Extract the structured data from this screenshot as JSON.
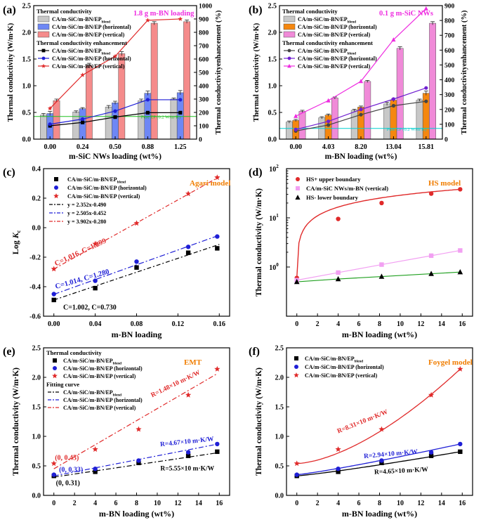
{
  "colors": {
    "gray_bar": "#c8c8c8",
    "blue_bar": "#6e87f5",
    "pink_bar": "#f58b8b",
    "orange_bar": "#f5870f",
    "magenta_bar": "#f08ad8",
    "black": "#000000",
    "blue": "#1f1fd6",
    "red": "#e02a2a",
    "magenta": "#ee2de0",
    "pinksq": "#f2a0f2",
    "orange_text": "#f07d00",
    "cyan": "#00d0d0",
    "green": "#20c020"
  },
  "chart_data": [
    {
      "panel": "(a)",
      "type": "bar",
      "xlabel": "m-SiC NWs loading (wt%)",
      "ylabel": "Thermal conductivity (W/m·K)",
      "ylabel2": "Thermal conductivityenhancement (%)",
      "categories": [
        "0.00",
        "0.24",
        "0.50",
        "0.88",
        "1.25"
      ],
      "ylim": [
        0,
        2.5
      ],
      "yticks": [
        "0.0",
        "0.5",
        "1.0",
        "1.5",
        "2.0",
        "2.5"
      ],
      "y2lim": [
        0,
        1000
      ],
      "y2ticks": [
        "0",
        "100",
        "200",
        "300",
        "400",
        "500",
        "600",
        "700",
        "800",
        "900",
        "1000"
      ],
      "annotation": "1.8 g m-BN loading",
      "legend": {
        "head1": "Thermal conductivity",
        "head2": "Thermal conductivity enhancement",
        "entries": [
          "CA/m-SiC/m-BN/EP",
          "CA/m-SiC/m-BN/EP (horizontal)",
          "CA/m-SiC/m-BN/EP (vertical)"
        ],
        "sub": "blend",
        "line_entries": [
          "CA/m-SiC/m-BN/EP",
          "CA/m-SiC/m-BN/EP (horizontal)",
          "CA/m-SiC/m-BN/EP (vertical)"
        ]
      },
      "series": [
        {
          "values": [
            0.45,
            0.51,
            0.6,
            0.72,
            0.75
          ],
          "errors": [
            0.03,
            0.02,
            0.03,
            0.03,
            0.02
          ]
        },
        {
          "values": [
            0.48,
            0.57,
            0.68,
            0.86,
            0.87
          ],
          "errors": [
            0.04,
            0.02,
            0.03,
            0.04,
            0.04
          ]
        },
        {
          "values": [
            0.72,
            1.38,
            1.6,
            2.17,
            2.2
          ],
          "errors": [
            0.03,
            0.04,
            0.04,
            0.03,
            0.03
          ]
        }
      ],
      "enhancement": [
        {
          "values": [
            100,
            125,
            165,
            198,
            198
          ]
        },
        {
          "values": [
            112,
            150,
            210,
            295,
            295
          ]
        },
        {
          "values": [
            230,
            480,
            620,
            890,
            900
          ]
        }
      ],
      "reference_line": {
        "y2": 170,
        "label": "Pure EP (0.2 W/m·K)"
      }
    },
    {
      "panel": "(b)",
      "type": "bar",
      "xlabel": "m-BN loading (wt%)",
      "ylabel": "Thermal conductivity (W/m·K)",
      "ylabel2": "Thermal conductivityenhancement (%)",
      "categories": [
        "0.00",
        "4.03",
        "8.20",
        "13.04",
        "15.81"
      ],
      "ylim": [
        0,
        2.5
      ],
      "yticks": [
        "0.0",
        "0.5",
        "1.0",
        "1.5",
        "2.0",
        "2.5"
      ],
      "y2lim": [
        0,
        900
      ],
      "y2ticks": [
        "0",
        "100",
        "200",
        "300",
        "400",
        "500",
        "600",
        "700",
        "800",
        "900"
      ],
      "annotation": "0.1 g m-SiC NWs",
      "legend": {
        "head1": "Thermal conductivity",
        "head2": "Thermal conductivity enhancement",
        "entries": [
          "CA/m-SiC/m-BN/EP",
          "CA/m-SiC/m-BN/EP (horizontal)",
          "CA/m-SiC/m-BN/EP (vertical)"
        ],
        "sub": "blend",
        "line_entries": [
          "CA/m-SiC/m-BN/EP",
          "CA/m-SiC/m-BN/EP (horizontal)",
          "CA/m-SiC/m-BN/EP (vertical)"
        ]
      },
      "series": [
        {
          "values": [
            0.32,
            0.4,
            0.54,
            0.66,
            0.73
          ],
          "errors": [
            0.02,
            0.02,
            0.02,
            0.03,
            0.02
          ]
        },
        {
          "values": [
            0.35,
            0.45,
            0.6,
            0.73,
            0.86
          ],
          "errors": [
            0.02,
            0.02,
            0.02,
            0.03,
            0.04
          ]
        },
        {
          "values": [
            0.52,
            0.77,
            1.08,
            1.7,
            2.17
          ],
          "errors": [
            0.02,
            0.02,
            0.02,
            0.03,
            0.03
          ]
        }
      ],
      "enhancement": [
        {
          "values": [
            55,
            95,
            165,
            225,
            255
          ]
        },
        {
          "values": [
            65,
            120,
            200,
            270,
            345
          ]
        },
        {
          "values": [
            155,
            260,
            390,
            670,
            880
          ]
        }
      ],
      "reference_line": {
        "y": 0.2,
        "label": "Pure EP (0.2 W/m·K)"
      }
    },
    {
      "panel": "(c)",
      "type": "scatter",
      "title": "Agari model",
      "xlabel": "m-BN loading",
      "ylabel": "Log K",
      "xlim": [
        -0.01,
        0.17
      ],
      "ylim": [
        -0.6,
        0.4
      ],
      "xticks": [
        "0.00",
        "0.04",
        "0.08",
        "0.12",
        "0.16"
      ],
      "yticks": [
        "-0.6",
        "-0.4",
        "-0.2",
        "0.0",
        "0.2",
        "0.4"
      ],
      "x": [
        0.0,
        0.04,
        0.08,
        0.13,
        0.158
      ],
      "legend": [
        "CA/m-SiC/m-BN/EP",
        "CA/m-SiC/m-BN/EP (horizontal)",
        "CA/m-SiC/m-BN/EP (vertical)"
      ],
      "sub": "blend",
      "fit_labels": [
        "y = 2.352x-0.490",
        "y = 2.505x-0.452",
        "y = 3.902x-0.280"
      ],
      "fits": [
        [
          2.352,
          -0.49
        ],
        [
          2.505,
          -0.452
        ],
        [
          3.902,
          -0.28
        ]
      ],
      "series": [
        {
          "values": [
            -0.49,
            -0.41,
            -0.27,
            -0.17,
            -0.14
          ]
        },
        {
          "values": [
            -0.45,
            -0.36,
            -0.23,
            -0.13,
            -0.06
          ]
        },
        {
          "values": [
            -0.28,
            -0.11,
            0.03,
            0.23,
            0.34
          ]
        }
      ],
      "annotations": [
        "C=1.016, C=1.299",
        "C=1.014, C=1.280",
        "C=1.002, C=0.730"
      ]
    },
    {
      "panel": "(d)",
      "type": "scatter",
      "title": "HS model",
      "xlabel": "m-BN loading (wt%)",
      "ylabel": "Thermal conductivity (W/m·K)",
      "xlim": [
        -1,
        17
      ],
      "ylim_log": [
        0.1,
        100
      ],
      "yscale": "log",
      "xticks": [
        "0",
        "2",
        "4",
        "6",
        "8",
        "10",
        "12",
        "14",
        "16"
      ],
      "x": [
        0,
        4,
        8.2,
        13,
        15.8
      ],
      "legend": [
        "HS+ upper boundary",
        "CA/m-SiC NWs/m-BN (vertical)",
        "HS- lower boundary"
      ],
      "series": [
        {
          "values": [
            0.6,
            9.5,
            20,
            31,
            38
          ]
        },
        {
          "values": [
            0.54,
            0.77,
            1.12,
            1.7,
            2.17
          ]
        },
        {
          "values": [
            0.5,
            0.57,
            0.64,
            0.73,
            0.79
          ]
        }
      ]
    },
    {
      "panel": "(e)",
      "type": "scatter",
      "title": "EMT",
      "xlabel": "m-BN loading (wt%)",
      "ylabel": "Thermal conductivity (W/m·K)",
      "xlim": [
        -1,
        17
      ],
      "ylim": [
        0,
        2.5
      ],
      "xticks": [
        "0",
        "2",
        "4",
        "6",
        "8",
        "10",
        "12",
        "14",
        "16"
      ],
      "yticks": [
        "0.0",
        "0.5",
        "1.0",
        "1.5",
        "2.0",
        "2.5"
      ],
      "x": [
        0,
        4,
        8.2,
        13,
        15.8
      ],
      "legend_head1": "Thermal conductivity",
      "legend_head2": "Fitting curve",
      "legend": [
        "CA/m-SiC/m-BN/EP",
        "CA/m-SiC/m-BN/EP (horizontal)",
        "CA/m-SiC/m-BN/EP (vertical)"
      ],
      "sub": "blend",
      "series": [
        {
          "values": [
            0.33,
            0.4,
            0.55,
            0.67,
            0.74
          ]
        },
        {
          "values": [
            0.35,
            0.45,
            0.59,
            0.73,
            0.87
          ]
        },
        {
          "values": [
            0.54,
            0.78,
            1.12,
            1.7,
            2.14
          ]
        }
      ],
      "fits": [
        [
          0.31,
          0.026
        ],
        [
          0.33,
          0.034
        ],
        [
          0.45,
          0.102
        ]
      ],
      "annotations": [
        "R=1.48×10 m·K/W",
        "R=4.67×10 m·K/W",
        "R=5.55×10 m·K/W"
      ],
      "points": [
        "(0, 0.45)",
        "(0, 0.33)",
        "(0, 0.31)"
      ]
    },
    {
      "panel": "(f)",
      "type": "scatter",
      "title": "Foygel model",
      "xlabel": "m-BN loading (wt%)",
      "ylabel": "Thermal conductivity (W/m·K)",
      "xlim": [
        -1,
        17
      ],
      "ylim": [
        0,
        2.5
      ],
      "xticks": [
        "0",
        "2",
        "4",
        "6",
        "8",
        "10",
        "12",
        "14",
        "16"
      ],
      "yticks": [
        "0.0",
        "0.5",
        "1.0",
        "1.5",
        "2.0",
        "2.5"
      ],
      "x": [
        0,
        4,
        8.2,
        13,
        15.8
      ],
      "legend": [
        "CA/m-SiC/m-BN/EP",
        "CA/m-SiC/m-BN/EP (horizontal)",
        "CA/m-SiC/m-BN/EP (vertical)"
      ],
      "sub": "blend",
      "series": [
        {
          "values": [
            0.33,
            0.4,
            0.55,
            0.67,
            0.74
          ]
        },
        {
          "values": [
            0.35,
            0.45,
            0.59,
            0.73,
            0.87
          ]
        },
        {
          "values": [
            0.54,
            0.78,
            1.12,
            1.7,
            2.14
          ]
        }
      ],
      "annotations": [
        "R=8.31×10 m·K/W",
        "R=2.94×10 m·K/W",
        "R=4.65×10 m·K/W"
      ]
    }
  ]
}
